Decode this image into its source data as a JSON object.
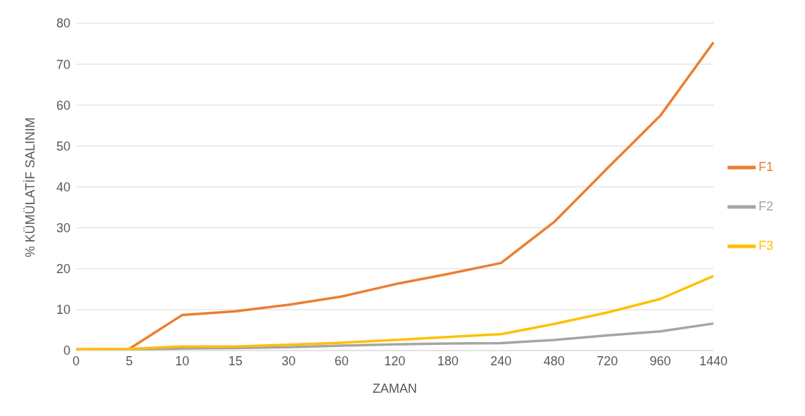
{
  "chart_data": {
    "type": "line",
    "xlabel": "ZAMAN",
    "ylabel": "% KÜMÜLATİF SALINIM",
    "categories": [
      "0",
      "5",
      "10",
      "15",
      "30",
      "60",
      "120",
      "180",
      "240",
      "480",
      "720",
      "960",
      "1440"
    ],
    "series": [
      {
        "name": "F1",
        "color": "#ed7d31",
        "values": [
          0.3,
          0.4,
          8.7,
          9.6,
          11.2,
          13.2,
          16.2,
          18.7,
          21.4,
          31.4,
          44.5,
          57.4,
          75.3
        ]
      },
      {
        "name": "F2",
        "color": "#a5a5a5",
        "values": [
          0.2,
          0.2,
          0.5,
          0.6,
          0.8,
          1.2,
          1.5,
          1.7,
          1.8,
          2.6,
          3.7,
          4.7,
          6.6
        ]
      },
      {
        "name": "F3",
        "color": "#ffc000",
        "values": [
          0.3,
          0.4,
          1.0,
          1.0,
          1.4,
          1.9,
          2.6,
          3.3,
          4.0,
          6.5,
          9.3,
          12.6,
          18.2
        ]
      }
    ],
    "ylim": [
      0,
      80
    ],
    "yticks": [
      0,
      10,
      20,
      30,
      40,
      50,
      60,
      70,
      80
    ],
    "grid": "y",
    "legend": "right",
    "marker": "none",
    "line_style": "solid"
  }
}
